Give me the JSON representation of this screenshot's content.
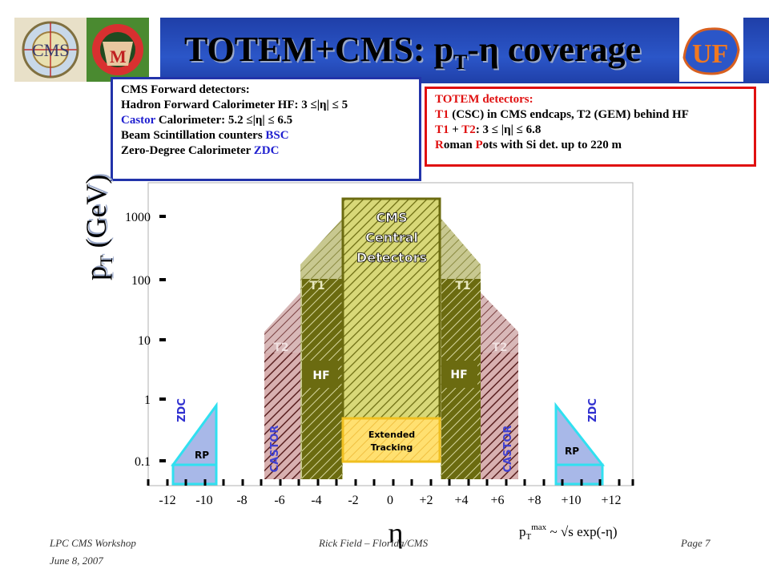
{
  "title": {
    "main": "TOTEM+CMS: p",
    "sub": "T",
    "rest": "-η coverage"
  },
  "cms_box": {
    "heading": "CMS Forward detectors:",
    "line1": "Hadron Forward Calorimeter HF: 3 ≤|η| ≤ 5",
    "line2_a": "Castor",
    "line2_b": " Calorimeter: 5.2 ≤|η| ≤ 6.5",
    "line3_a": "Beam Scintillation counters ",
    "line3_b": "BSC",
    "line4_a": "Zero-Degree Calorimeter ",
    "line4_b": "ZDC"
  },
  "totem_box": {
    "heading": "TOTEM detectors:",
    "line1_a": "T1",
    "line1_b": " (CSC) in CMS endcaps, T2 (GEM) behind HF",
    "line2_a": "T1",
    "line2_b": " + ",
    "line2_c": "T2",
    "line2_d": ": 3 ≤ |η| ≤ 6.8",
    "line3_a": "R",
    "line3_b": "oman ",
    "line3_c": "P",
    "line3_d": "ots with Si det. up to 220 m"
  },
  "axes": {
    "ylabel_main": "p",
    "ylabel_sub": "T",
    "ylabel_rest": " (GeV)",
    "xlabel": "η",
    "formula_a": "p",
    "formula_sub": "T",
    "formula_sup": "max",
    "formula_b": " ~ √s exp(-η)",
    "y_ticks": [
      "1000",
      "100",
      "10",
      "1",
      "0.1"
    ],
    "x_ticks": [
      "-12",
      "-10",
      "-8",
      "-6",
      "-4",
      "-2",
      "0",
      "+2",
      "+4",
      "+6",
      "+8",
      "+10",
      "+12"
    ]
  },
  "labels": {
    "cms_central_1": "CMS",
    "cms_central_2": "Central",
    "cms_central_3": "Detectors",
    "extended_1": "Extended",
    "extended_2": "Tracking",
    "t1": "T1",
    "t2": "T2",
    "hf": "HF",
    "castor": "CASTOR",
    "zdc": "ZDC",
    "rp": "RP"
  },
  "footer": {
    "workshop": "LPC CMS Workshop",
    "date": "June 8, 2007",
    "author": "Rick Field – Florida/CMS",
    "page": "Page 7"
  },
  "colors": {
    "banner": "#2b56c8",
    "hf_fill": "#6b6b10",
    "central_fill": "#c8c850",
    "t1_fill": "#9a9a4a",
    "t2_fill": "#b89090",
    "castor_fill": "#6a3030",
    "tracking": "#ffd84a",
    "rp_fill": "#a8b8e8",
    "zdc_outline": "#30e0f0"
  }
}
